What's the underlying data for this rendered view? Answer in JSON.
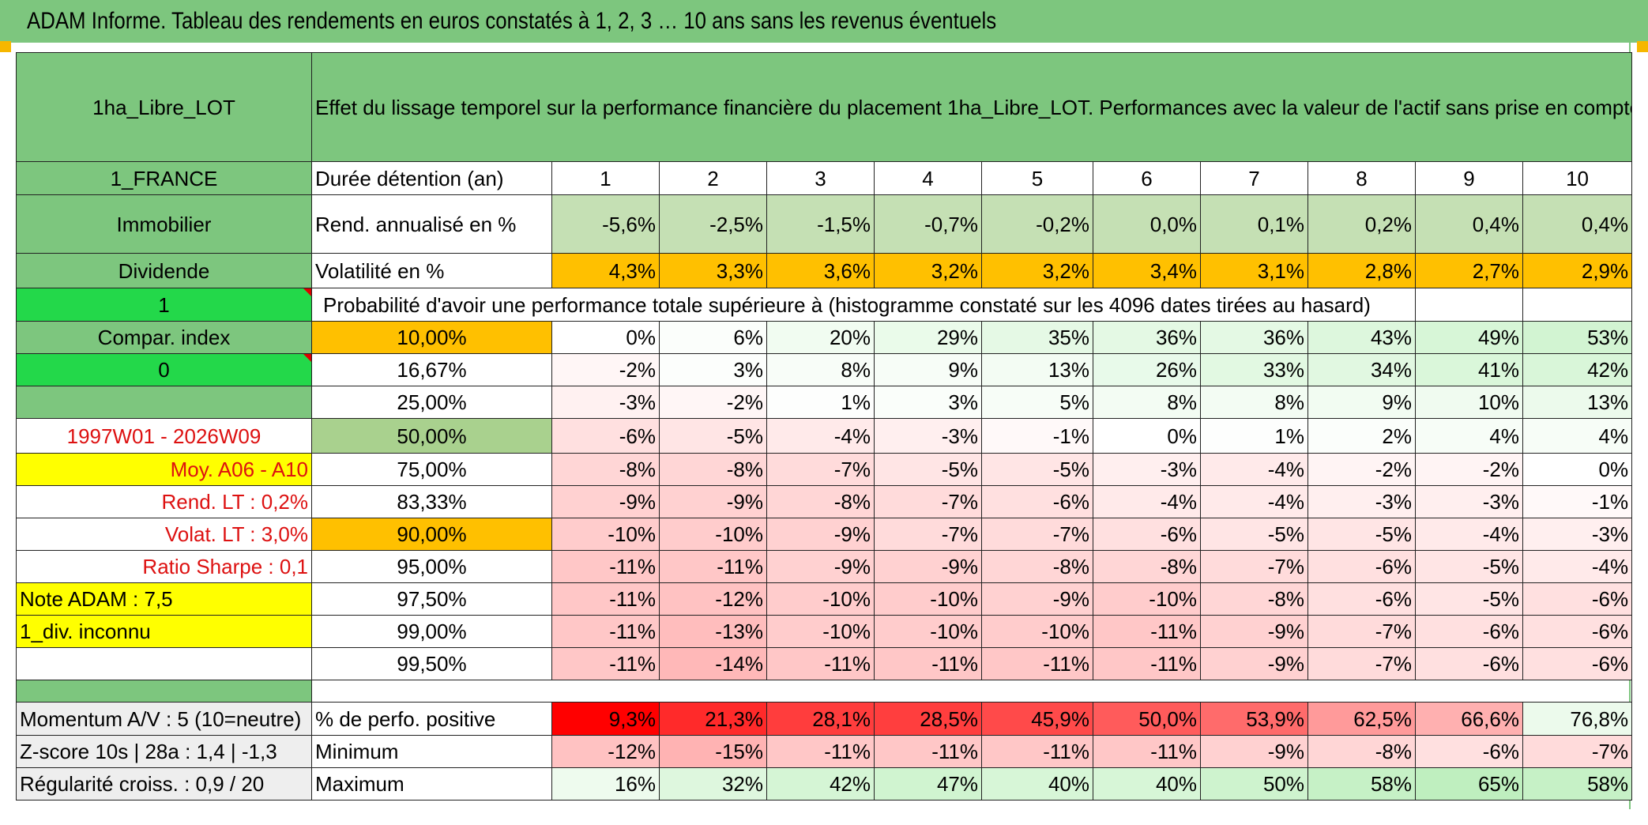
{
  "title": "ADAM Informe. Tableau des rendements en euros constatés à 1, 2, 3 … 10 ans sans les revenus éventuels",
  "header": {
    "asset": "1ha_Libre_LOT",
    "description": "Effet du lissage temporel sur la performance financière du placement 1ha_Libre_LOT. Performances avec la valeur de l'actif sans prise en compte des revenus."
  },
  "left_labels": {
    "country": "1_FRANCE",
    "category": "Immobilier",
    "type": "Dividende",
    "flag1": "1",
    "compar_index": "Compar. index",
    "flag0": "0",
    "period": "1997W01 - 2026W09",
    "moy": "Moy. A06 - A10",
    "rend_lt": "Rend. LT :   0,2%",
    "volat_lt": "Volat. LT :   3,0%",
    "sharpe": "Ratio Sharpe :   0,1",
    "note": "Note ADAM : 7,5",
    "div": "1_div. inconnu",
    "momentum": "Momentum A/V : 5 (10=neutre)",
    "zscore": "Z-score 10s | 28a : 1,4 | -1,3",
    "regularite": "Régularité croiss. : 0,9 / 20"
  },
  "rows": {
    "duree_label": "Durée détention (an)",
    "years": [
      "1",
      "2",
      "3",
      "4",
      "5",
      "6",
      "7",
      "8",
      "9",
      "10"
    ],
    "rend_label": "Rend. annualisé en %",
    "rend": [
      "-5,6%",
      "-2,5%",
      "-1,5%",
      "-0,7%",
      "-0,2%",
      "0,0%",
      "0,1%",
      "0,2%",
      "0,4%",
      "0,4%"
    ],
    "vol_label": "Volatilité en %",
    "vol": [
      "4,3%",
      "3,3%",
      "3,6%",
      "3,2%",
      "3,2%",
      "3,4%",
      "3,1%",
      "2,8%",
      "2,7%",
      "2,9%"
    ],
    "prob_label": "Probabilité d'avoir une performance totale supérieure à (histogramme constaté sur les 4096 dates tirées au hasard)"
  },
  "percentiles": [
    {
      "p": "10,00%",
      "v": [
        "0%",
        "6%",
        "20%",
        "29%",
        "35%",
        "36%",
        "36%",
        "43%",
        "49%",
        "53%"
      ]
    },
    {
      "p": "16,67%",
      "v": [
        "-2%",
        "3%",
        "8%",
        "9%",
        "13%",
        "26%",
        "33%",
        "34%",
        "41%",
        "42%"
      ]
    },
    {
      "p": "25,00%",
      "v": [
        "-3%",
        "-2%",
        "1%",
        "3%",
        "5%",
        "8%",
        "8%",
        "9%",
        "10%",
        "13%"
      ]
    },
    {
      "p": "50,00%",
      "v": [
        "-6%",
        "-5%",
        "-4%",
        "-3%",
        "-1%",
        "0%",
        "1%",
        "2%",
        "4%",
        "4%"
      ]
    },
    {
      "p": "75,00%",
      "v": [
        "-8%",
        "-8%",
        "-7%",
        "-5%",
        "-5%",
        "-3%",
        "-4%",
        "-2%",
        "-2%",
        "0%"
      ]
    },
    {
      "p": "83,33%",
      "v": [
        "-9%",
        "-9%",
        "-8%",
        "-7%",
        "-6%",
        "-4%",
        "-4%",
        "-3%",
        "-3%",
        "-1%"
      ]
    },
    {
      "p": "90,00%",
      "v": [
        "-10%",
        "-10%",
        "-9%",
        "-7%",
        "-7%",
        "-6%",
        "-5%",
        "-5%",
        "-4%",
        "-3%"
      ]
    },
    {
      "p": "95,00%",
      "v": [
        "-11%",
        "-11%",
        "-9%",
        "-9%",
        "-8%",
        "-8%",
        "-7%",
        "-6%",
        "-5%",
        "-4%"
      ]
    },
    {
      "p": "97,50%",
      "v": [
        "-11%",
        "-12%",
        "-10%",
        "-10%",
        "-9%",
        "-10%",
        "-8%",
        "-6%",
        "-5%",
        "-6%"
      ]
    },
    {
      "p": "99,00%",
      "v": [
        "-11%",
        "-13%",
        "-10%",
        "-10%",
        "-10%",
        "-11%",
        "-9%",
        "-7%",
        "-6%",
        "-6%"
      ]
    },
    {
      "p": "99,50%",
      "v": [
        "-11%",
        "-14%",
        "-11%",
        "-11%",
        "-11%",
        "-11%",
        "-9%",
        "-7%",
        "-6%",
        "-6%"
      ]
    }
  ],
  "bottom": {
    "pos_label": "% de perfo. positive",
    "pos": [
      "9,3%",
      "21,3%",
      "28,1%",
      "28,5%",
      "45,9%",
      "50,0%",
      "53,9%",
      "62,5%",
      "66,6%",
      "76,8%"
    ],
    "min_label": "Minimum",
    "min": [
      "-12%",
      "-15%",
      "-11%",
      "-11%",
      "-11%",
      "-11%",
      "-9%",
      "-8%",
      "-6%",
      "-7%"
    ],
    "max_label": "Maximum",
    "max": [
      "16%",
      "32%",
      "42%",
      "47%",
      "40%",
      "40%",
      "50%",
      "58%",
      "65%",
      "58%"
    ]
  },
  "colors": {
    "header_green": "#7dc67e",
    "bright_green": "#23d84a",
    "orange": "#ffc000",
    "yellow": "#ffff00",
    "label_red": "#dd1111"
  }
}
